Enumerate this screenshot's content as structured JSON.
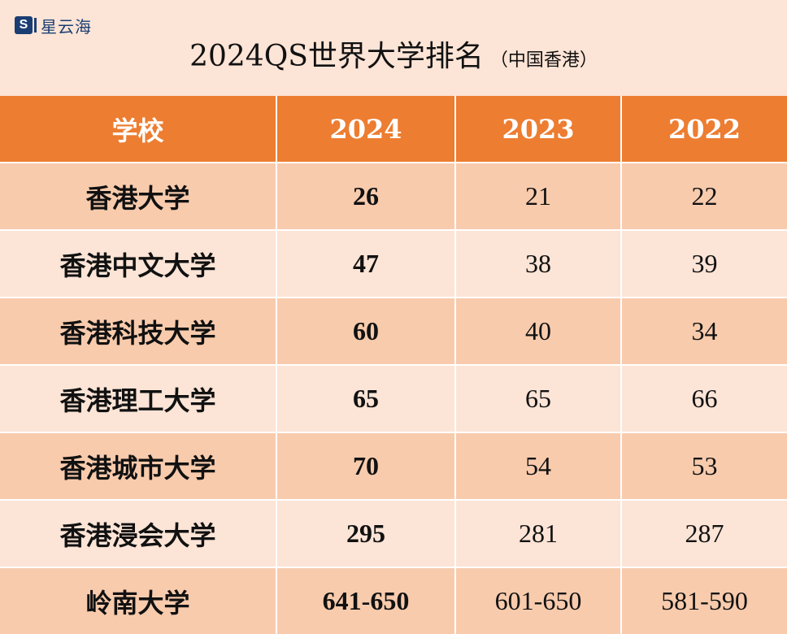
{
  "logo": {
    "mark": "S",
    "text": "星云海"
  },
  "title": {
    "main": "2024QS世界大学排名",
    "sub": "（中国香港）"
  },
  "table": {
    "headers": [
      "学校",
      "2024",
      "2023",
      "2022"
    ],
    "rows": [
      {
        "school": "香港大学",
        "r2024": "26",
        "r2023": "21",
        "r2022": "22"
      },
      {
        "school": "香港中文大学",
        "r2024": "47",
        "r2023": "38",
        "r2022": "39"
      },
      {
        "school": "香港科技大学",
        "r2024": "60",
        "r2023": "40",
        "r2022": "34"
      },
      {
        "school": "香港理工大学",
        "r2024": "65",
        "r2023": "65",
        "r2022": "66"
      },
      {
        "school": "香港城市大学",
        "r2024": "70",
        "r2023": "54",
        "r2022": "53"
      },
      {
        "school": "香港浸会大学",
        "r2024": "295",
        "r2023": "281",
        "r2022": "287"
      },
      {
        "school": "岭南大学",
        "r2024": "641-650",
        "r2023": "601-650",
        "r2022": "581-590"
      }
    ]
  },
  "colors": {
    "header_bg": "#ED7D31",
    "row_dark": "#F8CBAD",
    "row_light": "#FCE4D6",
    "logo_blue": "#1A3E73"
  }
}
